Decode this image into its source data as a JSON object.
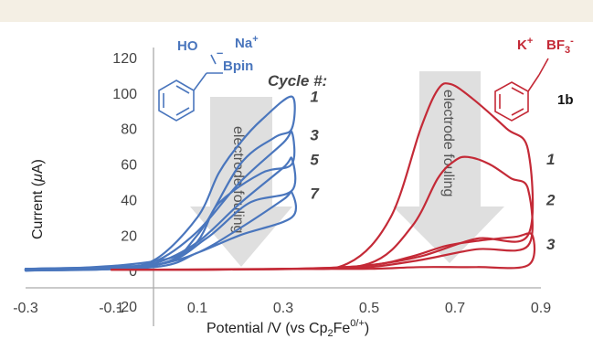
{
  "chart_data": {
    "type": "line",
    "xlabel": "Potential  /V (vs Cp",
    "xlabel_sub": "2",
    "xlabel_mid": "Fe",
    "xlabel_sup": "0/+",
    "xlabel_end": ")",
    "ylabel": "Current  (",
    "ylabel_mu": "μ",
    "ylabel_end": "A)",
    "xlim": [
      -0.3,
      0.9
    ],
    "ylim": [
      -20,
      120
    ],
    "xticks": [
      "-0.3",
      "-0.1",
      "0.1",
      "0.3",
      "0.5",
      "0.7",
      "0.9"
    ],
    "yticks": [
      "-20",
      "0",
      "20",
      "40",
      "60",
      "80",
      "100",
      "120"
    ],
    "cycle_header": "Cycle #:",
    "series": [
      {
        "name": "1",
        "color": "#4a76bd",
        "peak_x": 0.32,
        "peak_y": 98,
        "curve": [
          [
            -0.3,
            1
          ],
          [
            -0.1,
            2
          ],
          [
            0.0,
            6
          ],
          [
            0.1,
            30
          ],
          [
            0.15,
            55
          ],
          [
            0.2,
            72
          ],
          [
            0.25,
            85
          ],
          [
            0.32,
            98
          ],
          [
            0.32,
            80
          ],
          [
            0.28,
            75
          ],
          [
            0.2,
            60
          ],
          [
            0.1,
            20
          ],
          [
            0.0,
            3
          ],
          [
            -0.3,
            0
          ]
        ]
      },
      {
        "name": "3",
        "color": "#4a76bd",
        "peak_x": 0.32,
        "peak_y": 78,
        "curve": [
          [
            -0.3,
            1
          ],
          [
            -0.1,
            2
          ],
          [
            0.0,
            5
          ],
          [
            0.1,
            22
          ],
          [
            0.2,
            50
          ],
          [
            0.3,
            72
          ],
          [
            0.32,
            78
          ],
          [
            0.32,
            60
          ],
          [
            0.25,
            55
          ],
          [
            0.15,
            38
          ],
          [
            0.05,
            8
          ],
          [
            -0.3,
            0
          ]
        ]
      },
      {
        "name": "5",
        "color": "#4a76bd",
        "peak_x": 0.32,
        "peak_y": 63,
        "curve": [
          [
            -0.3,
            1
          ],
          [
            -0.1,
            2
          ],
          [
            0.0,
            4
          ],
          [
            0.1,
            16
          ],
          [
            0.2,
            38
          ],
          [
            0.3,
            58
          ],
          [
            0.32,
            63
          ],
          [
            0.32,
            45
          ],
          [
            0.22,
            38
          ],
          [
            0.12,
            18
          ],
          [
            0.0,
            3
          ],
          [
            -0.3,
            0
          ]
        ]
      },
      {
        "name": "7",
        "color": "#4a76bd",
        "peak_x": 0.32,
        "peak_y": 44,
        "curve": [
          [
            -0.3,
            1
          ],
          [
            -0.1,
            2
          ],
          [
            0.0,
            3
          ],
          [
            0.1,
            10
          ],
          [
            0.2,
            24
          ],
          [
            0.3,
            40
          ],
          [
            0.32,
            44
          ],
          [
            0.32,
            30
          ],
          [
            0.2,
            20
          ],
          [
            0.1,
            10
          ],
          [
            0.0,
            2
          ],
          [
            -0.3,
            0
          ]
        ]
      },
      {
        "name": "1",
        "color": "#c42a37",
        "peak_x": 0.69,
        "peak_y": 105,
        "curve": [
          [
            -0.1,
            0.5
          ],
          [
            0.3,
            1
          ],
          [
            0.45,
            4
          ],
          [
            0.55,
            30
          ],
          [
            0.62,
            80
          ],
          [
            0.66,
            102
          ],
          [
            0.69,
            105
          ],
          [
            0.74,
            97
          ],
          [
            0.82,
            80
          ],
          [
            0.87,
            68
          ],
          [
            0.87,
            20
          ],
          [
            0.75,
            18
          ],
          [
            0.62,
            8
          ],
          [
            0.5,
            3
          ],
          [
            0.35,
            1
          ],
          [
            0.1,
            0.5
          ]
        ]
      },
      {
        "name": "2",
        "color": "#c42a37",
        "peak_x": 0.73,
        "peak_y": 64,
        "curve": [
          [
            -0.1,
            0.5
          ],
          [
            0.3,
            1
          ],
          [
            0.5,
            4
          ],
          [
            0.6,
            25
          ],
          [
            0.66,
            52
          ],
          [
            0.7,
            62
          ],
          [
            0.73,
            64
          ],
          [
            0.78,
            60
          ],
          [
            0.83,
            52
          ],
          [
            0.87,
            46
          ],
          [
            0.87,
            14
          ],
          [
            0.75,
            12
          ],
          [
            0.62,
            6
          ],
          [
            0.5,
            2
          ],
          [
            0.35,
            1
          ],
          [
            0.1,
            0.5
          ]
        ]
      },
      {
        "name": "3",
        "color": "#c42a37",
        "peak_x": 0.88,
        "peak_y": 20,
        "curve": [
          [
            -0.1,
            0.5
          ],
          [
            0.3,
            1
          ],
          [
            0.5,
            3
          ],
          [
            0.6,
            8
          ],
          [
            0.68,
            14
          ],
          [
            0.76,
            17
          ],
          [
            0.84,
            19
          ],
          [
            0.88,
            20
          ],
          [
            0.87,
            3
          ],
          [
            0.75,
            2
          ],
          [
            0.62,
            2
          ],
          [
            0.5,
            1
          ],
          [
            0.35,
            1
          ],
          [
            0.1,
            0.5
          ]
        ]
      }
    ],
    "annotations": {
      "fouling_label": "electrode fouling",
      "blue_compound": {
        "ho": "HO",
        "minus": "–",
        "na": "Na",
        "na_charge": "+",
        "bpin": "Bpin"
      },
      "red_compound": {
        "k": "K",
        "k_charge": "+",
        "bf": "BF",
        "bf_sub": "3",
        "bf_charge": "-",
        "label": "1b"
      }
    }
  }
}
